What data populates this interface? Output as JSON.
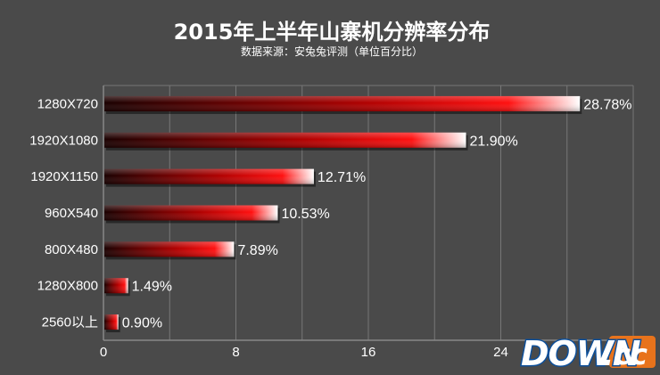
{
  "chart_data": {
    "type": "bar",
    "orientation": "horizontal",
    "title_main": "2015",
    "title_rest": "年上半年山寨机分辨率分布",
    "subtitle": "数据来源：安兔兔评测（单位百分比）",
    "categories": [
      "1280X720",
      "1920X1080",
      "1920X1150",
      "960X540",
      "800X480",
      "1280X800",
      "2560以上"
    ],
    "values": [
      28.78,
      21.9,
      12.71,
      10.53,
      7.89,
      1.49,
      0.9
    ],
    "value_labels": [
      "28.78%",
      "21.90%",
      "12.71%",
      "10.53%",
      "7.89%",
      "1.49%",
      "0.90%"
    ],
    "x_ticks": [
      "0",
      "8",
      "16",
      "24"
    ],
    "x_tick_values": [
      0,
      8,
      16,
      24
    ],
    "xlim": [
      0,
      32
    ],
    "grid": true,
    "legend": "none",
    "colors": {
      "background": "#4a4a4a",
      "bar_dark": "#1a0000",
      "bar_red": "#e60000",
      "bar_highlight": "#ffffff",
      "grid": "#777777",
      "text": "#ffffff"
    }
  },
  "watermark": {
    "main": "DOWN",
    "dot": ".",
    "suffix": "cc",
    "colors": {
      "main_stroke": "#0d4f9a",
      "cc_background": "#e8731c"
    }
  }
}
